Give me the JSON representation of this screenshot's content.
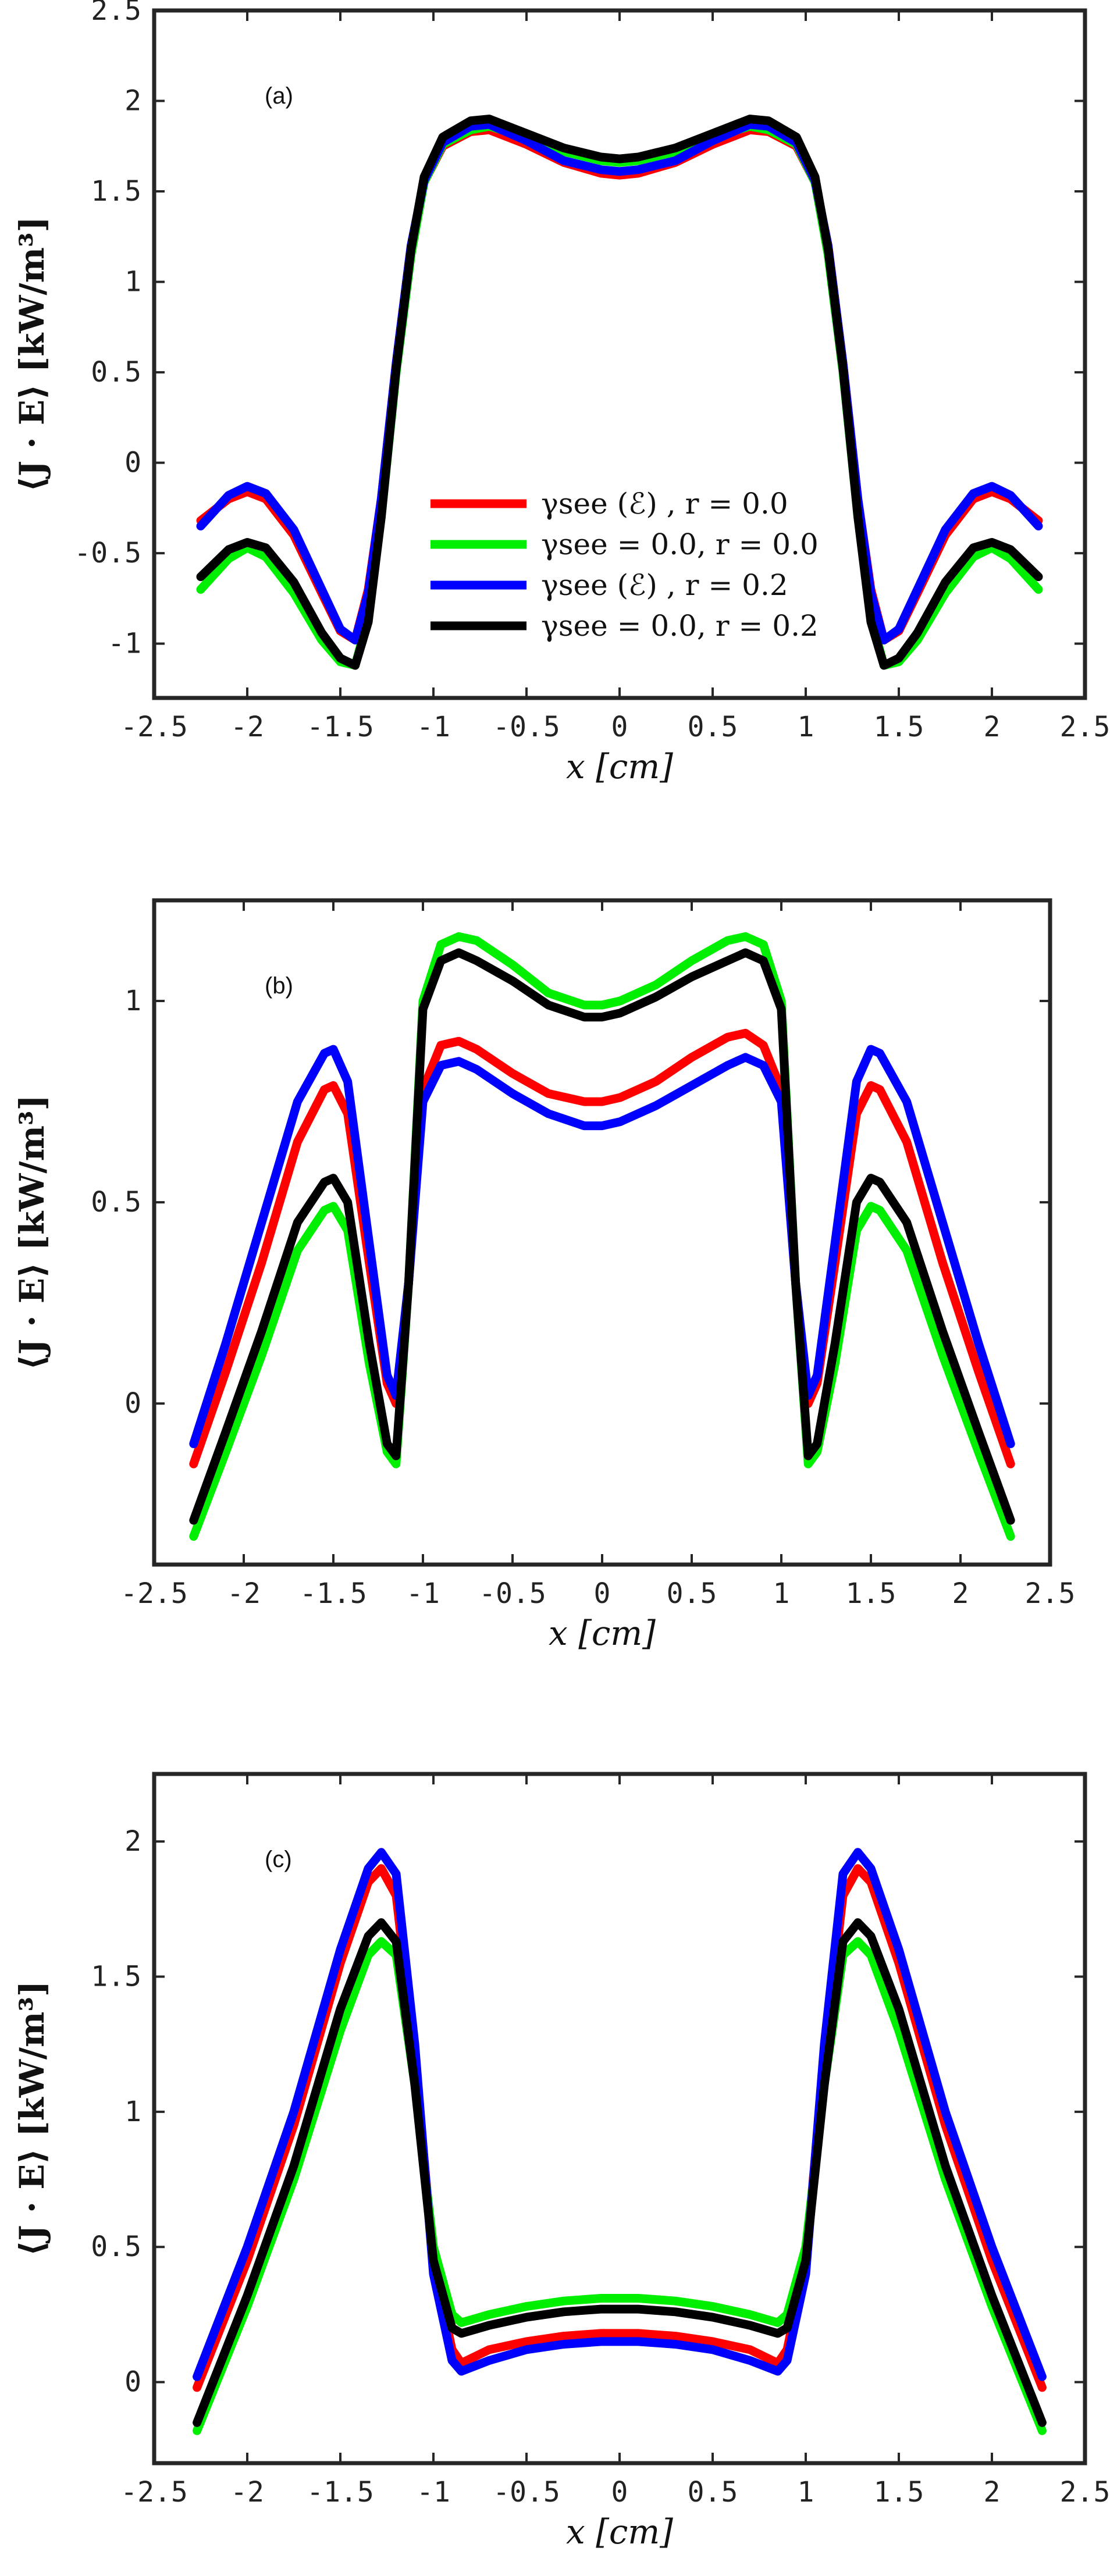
{
  "chart_data": [
    {
      "type": "line",
      "panel_label": "(a)",
      "xlabel": "x [cm]",
      "ylabel": "⟨J · E⟩ [kW/m³]",
      "xlim": [
        -2.5,
        2.5
      ],
      "ylim": [
        -1.3,
        2.5
      ],
      "xticks": [
        -2.5,
        -2,
        -1.5,
        -1,
        -0.5,
        0,
        0.5,
        1,
        1.5,
        2,
        2.5
      ],
      "xtick_labels": [
        "-2.5",
        "-2",
        "-1.5",
        "-1",
        "-0.5",
        "0",
        "0.5",
        "1",
        "1.5",
        "2",
        "2.5"
      ],
      "yticks": [
        -1,
        -0.5,
        0,
        0.5,
        1,
        1.5,
        2,
        2.5
      ],
      "ytick_labels": [
        "-1",
        "-0.5",
        "0",
        "0.5",
        "1",
        "1.5",
        "2",
        "2.5"
      ],
      "legend": {
        "placement": "lower-center",
        "show": true
      },
      "series": [
        {
          "name": "γsee (ℰ) , r = 0.0",
          "color": "#ff0000",
          "x": [
            -2.25,
            -2.1,
            -2.0,
            -1.9,
            -1.75,
            -1.6,
            -1.5,
            -1.42,
            -1.35,
            -1.28,
            -1.2,
            -1.12,
            -1.05,
            -0.95,
            -0.8,
            -0.7,
            -0.5,
            -0.3,
            -0.1,
            0,
            0.1,
            0.3,
            0.5,
            0.7,
            0.8,
            0.95,
            1.05,
            1.12,
            1.2,
            1.28,
            1.35,
            1.42,
            1.5,
            1.6,
            1.75,
            1.9,
            2.0,
            2.1,
            2.25
          ],
          "y": [
            -0.32,
            -0.2,
            -0.16,
            -0.2,
            -0.4,
            -0.72,
            -0.93,
            -0.98,
            -0.7,
            -0.2,
            0.55,
            1.2,
            1.55,
            1.75,
            1.83,
            1.84,
            1.76,
            1.66,
            1.6,
            1.59,
            1.6,
            1.66,
            1.76,
            1.84,
            1.83,
            1.75,
            1.55,
            1.2,
            0.55,
            -0.2,
            -0.7,
            -0.98,
            -0.93,
            -0.72,
            -0.4,
            -0.2,
            -0.16,
            -0.2,
            -0.32
          ]
        },
        {
          "name": "γsee = 0.0, r = 0.0",
          "color": "#00ee00",
          "x": [
            -2.25,
            -2.1,
            -2.0,
            -1.9,
            -1.75,
            -1.6,
            -1.5,
            -1.42,
            -1.35,
            -1.28,
            -1.2,
            -1.12,
            -1.05,
            -0.95,
            -0.8,
            -0.7,
            -0.5,
            -0.3,
            -0.1,
            0,
            0.1,
            0.3,
            0.5,
            0.7,
            0.8,
            0.95,
            1.05,
            1.12,
            1.2,
            1.28,
            1.35,
            1.42,
            1.5,
            1.6,
            1.75,
            1.9,
            2.0,
            2.1,
            2.25
          ],
          "y": [
            -0.7,
            -0.53,
            -0.47,
            -0.52,
            -0.72,
            -0.98,
            -1.1,
            -1.12,
            -0.85,
            -0.3,
            0.5,
            1.15,
            1.55,
            1.76,
            1.84,
            1.86,
            1.8,
            1.72,
            1.67,
            1.66,
            1.67,
            1.72,
            1.8,
            1.86,
            1.84,
            1.76,
            1.55,
            1.15,
            0.5,
            -0.3,
            -0.85,
            -1.12,
            -1.1,
            -0.98,
            -0.72,
            -0.52,
            -0.47,
            -0.53,
            -0.7
          ]
        },
        {
          "name": "γsee (ℰ) , r = 0.2",
          "color": "#0000ff",
          "x": [
            -2.25,
            -2.1,
            -2.0,
            -1.9,
            -1.75,
            -1.6,
            -1.5,
            -1.42,
            -1.35,
            -1.28,
            -1.2,
            -1.12,
            -1.05,
            -0.95,
            -0.8,
            -0.7,
            -0.5,
            -0.3,
            -0.1,
            0,
            0.1,
            0.3,
            0.5,
            0.7,
            0.8,
            0.95,
            1.05,
            1.12,
            1.2,
            1.28,
            1.35,
            1.42,
            1.5,
            1.6,
            1.75,
            1.9,
            2.0,
            2.1,
            2.25
          ],
          "y": [
            -0.35,
            -0.18,
            -0.13,
            -0.17,
            -0.37,
            -0.7,
            -0.92,
            -0.98,
            -0.72,
            -0.2,
            0.55,
            1.2,
            1.56,
            1.77,
            1.86,
            1.87,
            1.78,
            1.67,
            1.62,
            1.61,
            1.62,
            1.67,
            1.78,
            1.87,
            1.86,
            1.77,
            1.56,
            1.2,
            0.55,
            -0.2,
            -0.72,
            -0.98,
            -0.92,
            -0.7,
            -0.37,
            -0.17,
            -0.13,
            -0.18,
            -0.35
          ]
        },
        {
          "name": "γsee = 0.0, r = 0.2",
          "color": "#000000",
          "x": [
            -2.25,
            -2.1,
            -2.0,
            -1.9,
            -1.75,
            -1.6,
            -1.5,
            -1.42,
            -1.35,
            -1.28,
            -1.2,
            -1.12,
            -1.05,
            -0.95,
            -0.8,
            -0.7,
            -0.5,
            -0.3,
            -0.1,
            0,
            0.1,
            0.3,
            0.5,
            0.7,
            0.8,
            0.95,
            1.05,
            1.12,
            1.2,
            1.28,
            1.35,
            1.42,
            1.5,
            1.6,
            1.75,
            1.9,
            2.0,
            2.1,
            2.25
          ],
          "y": [
            -0.63,
            -0.48,
            -0.44,
            -0.47,
            -0.66,
            -0.94,
            -1.08,
            -1.12,
            -0.88,
            -0.3,
            0.52,
            1.18,
            1.58,
            1.8,
            1.89,
            1.9,
            1.82,
            1.74,
            1.69,
            1.68,
            1.69,
            1.74,
            1.82,
            1.9,
            1.89,
            1.8,
            1.58,
            1.18,
            0.52,
            -0.3,
            -0.88,
            -1.12,
            -1.08,
            -0.94,
            -0.66,
            -0.47,
            -0.44,
            -0.48,
            -0.63
          ]
        }
      ]
    },
    {
      "type": "line",
      "panel_label": "(b)",
      "xlabel": "x [cm]",
      "ylabel": "⟨J · E⟩ [kW/m³]",
      "xlim": [
        -2.5,
        2.5
      ],
      "ylim": [
        -0.4,
        1.25
      ],
      "xticks": [
        -2.5,
        -2,
        -1.5,
        -1,
        -0.5,
        0,
        0.5,
        1,
        1.5,
        2,
        2.5
      ],
      "xtick_labels": [
        "-2.5",
        "-2",
        "-1.5",
        "-1",
        "-0.5",
        "0",
        "0.5",
        "1",
        "1.5",
        "2",
        "2.5"
      ],
      "yticks": [
        0,
        0.5,
        1
      ],
      "ytick_labels": [
        "0",
        "0.5",
        "1"
      ],
      "legend": {
        "show": false
      },
      "series": [
        {
          "name": "γsee (ℰ) , r = 0.0",
          "color": "#ff0000",
          "x": [
            -2.28,
            -2.1,
            -1.9,
            -1.7,
            -1.55,
            -1.5,
            -1.42,
            -1.3,
            -1.2,
            -1.15,
            -1.08,
            -1.0,
            -0.9,
            -0.8,
            -0.7,
            -0.5,
            -0.3,
            -0.1,
            0,
            0.1,
            0.3,
            0.5,
            0.7,
            0.8,
            0.9,
            1.0,
            1.08,
            1.15,
            1.2,
            1.3,
            1.42,
            1.5,
            1.55,
            1.7,
            1.9,
            2.1,
            2.28
          ],
          "y": [
            -0.15,
            0.08,
            0.35,
            0.65,
            0.78,
            0.79,
            0.72,
            0.35,
            0.05,
            0.0,
            0.3,
            0.78,
            0.89,
            0.9,
            0.88,
            0.82,
            0.77,
            0.75,
            0.75,
            0.76,
            0.8,
            0.86,
            0.91,
            0.92,
            0.89,
            0.78,
            0.3,
            0.0,
            0.05,
            0.35,
            0.72,
            0.79,
            0.78,
            0.65,
            0.35,
            0.08,
            -0.15
          ]
        },
        {
          "name": "γsee = 0.0, r = 0.0",
          "color": "#00ee00",
          "x": [
            -2.28,
            -2.1,
            -1.9,
            -1.7,
            -1.55,
            -1.5,
            -1.42,
            -1.3,
            -1.2,
            -1.15,
            -1.08,
            -1.0,
            -0.9,
            -0.8,
            -0.7,
            -0.5,
            -0.3,
            -0.1,
            0,
            0.1,
            0.3,
            0.5,
            0.7,
            0.8,
            0.9,
            1.0,
            1.08,
            1.15,
            1.2,
            1.3,
            1.42,
            1.5,
            1.55,
            1.7,
            1.9,
            2.1,
            2.28
          ],
          "y": [
            -0.33,
            -0.12,
            0.12,
            0.38,
            0.48,
            0.49,
            0.43,
            0.1,
            -0.12,
            -0.15,
            0.3,
            1.0,
            1.14,
            1.16,
            1.15,
            1.09,
            1.02,
            0.99,
            0.99,
            1.0,
            1.04,
            1.1,
            1.15,
            1.16,
            1.14,
            1.0,
            0.3,
            -0.15,
            -0.12,
            0.1,
            0.43,
            0.49,
            0.48,
            0.38,
            0.12,
            -0.12,
            -0.33
          ]
        },
        {
          "name": "γsee (ℰ) , r = 0.2",
          "color": "#0000ff",
          "x": [
            -2.28,
            -2.1,
            -1.9,
            -1.7,
            -1.55,
            -1.5,
            -1.42,
            -1.3,
            -1.2,
            -1.15,
            -1.08,
            -1.0,
            -0.9,
            -0.8,
            -0.7,
            -0.5,
            -0.3,
            -0.1,
            0,
            0.1,
            0.3,
            0.5,
            0.7,
            0.8,
            0.9,
            1.0,
            1.08,
            1.15,
            1.2,
            1.3,
            1.42,
            1.5,
            1.55,
            1.7,
            1.9,
            2.1,
            2.28
          ],
          "y": [
            -0.1,
            0.15,
            0.45,
            0.75,
            0.87,
            0.88,
            0.8,
            0.4,
            0.07,
            0.02,
            0.3,
            0.75,
            0.84,
            0.85,
            0.83,
            0.77,
            0.72,
            0.69,
            0.69,
            0.7,
            0.74,
            0.79,
            0.84,
            0.86,
            0.84,
            0.75,
            0.3,
            0.02,
            0.07,
            0.4,
            0.8,
            0.88,
            0.87,
            0.75,
            0.45,
            0.15,
            -0.1
          ]
        },
        {
          "name": "γsee = 0.0, r = 0.2",
          "color": "#000000",
          "x": [
            -2.28,
            -2.1,
            -1.9,
            -1.7,
            -1.55,
            -1.5,
            -1.42,
            -1.3,
            -1.2,
            -1.15,
            -1.08,
            -1.0,
            -0.9,
            -0.8,
            -0.7,
            -0.5,
            -0.3,
            -0.1,
            0,
            0.1,
            0.3,
            0.5,
            0.7,
            0.8,
            0.9,
            1.0,
            1.08,
            1.15,
            1.2,
            1.3,
            1.42,
            1.5,
            1.55,
            1.7,
            1.9,
            2.1,
            2.28
          ],
          "y": [
            -0.29,
            -0.07,
            0.18,
            0.45,
            0.55,
            0.56,
            0.5,
            0.15,
            -0.1,
            -0.13,
            0.3,
            0.98,
            1.1,
            1.12,
            1.1,
            1.05,
            0.99,
            0.96,
            0.96,
            0.97,
            1.01,
            1.06,
            1.1,
            1.12,
            1.1,
            0.98,
            0.3,
            -0.13,
            -0.1,
            0.15,
            0.5,
            0.56,
            0.55,
            0.45,
            0.18,
            -0.07,
            -0.29
          ]
        }
      ]
    },
    {
      "type": "line",
      "panel_label": "(c)",
      "xlabel": "x [cm]",
      "ylabel": "⟨J · E⟩ [kW/m³]",
      "xlim": [
        -2.5,
        2.5
      ],
      "ylim": [
        -0.3,
        2.25
      ],
      "xticks": [
        -2.5,
        -2,
        -1.5,
        -1,
        -0.5,
        0,
        0.5,
        1,
        1.5,
        2,
        2.5
      ],
      "xtick_labels": [
        "-2.5",
        "-2",
        "-1.5",
        "-1",
        "-0.5",
        "0",
        "0.5",
        "1",
        "1.5",
        "2",
        "2.5"
      ],
      "yticks": [
        0,
        0.5,
        1,
        1.5,
        2
      ],
      "ytick_labels": [
        "0",
        "0.5",
        "1",
        "1.5",
        "2"
      ],
      "legend": {
        "show": false
      },
      "series": [
        {
          "name": "γsee (ℰ) , r = 0.0",
          "color": "#ff0000",
          "x": [
            -2.27,
            -2.0,
            -1.75,
            -1.5,
            -1.35,
            -1.28,
            -1.2,
            -1.1,
            -1.0,
            -0.9,
            -0.85,
            -0.7,
            -0.5,
            -0.3,
            -0.1,
            0,
            0.1,
            0.3,
            0.5,
            0.7,
            0.85,
            0.9,
            1.0,
            1.1,
            1.2,
            1.28,
            1.35,
            1.5,
            1.75,
            2.0,
            2.27
          ],
          "y": [
            -0.02,
            0.45,
            0.95,
            1.55,
            1.85,
            1.9,
            1.8,
            1.2,
            0.45,
            0.12,
            0.07,
            0.12,
            0.15,
            0.17,
            0.18,
            0.18,
            0.18,
            0.17,
            0.15,
            0.12,
            0.07,
            0.12,
            0.45,
            1.2,
            1.8,
            1.9,
            1.85,
            1.55,
            0.95,
            0.45,
            -0.02
          ]
        },
        {
          "name": "γsee = 0.0, r = 0.0",
          "color": "#00ee00",
          "x": [
            -2.27,
            -2.0,
            -1.75,
            -1.5,
            -1.35,
            -1.28,
            -1.2,
            -1.1,
            -1.0,
            -0.9,
            -0.85,
            -0.7,
            -0.5,
            -0.3,
            -0.1,
            0,
            0.1,
            0.3,
            0.5,
            0.7,
            0.85,
            0.9,
            1.0,
            1.1,
            1.2,
            1.28,
            1.35,
            1.5,
            1.75,
            2.0,
            2.27
          ],
          "y": [
            -0.18,
            0.28,
            0.75,
            1.3,
            1.58,
            1.63,
            1.58,
            1.1,
            0.5,
            0.25,
            0.22,
            0.25,
            0.28,
            0.3,
            0.31,
            0.31,
            0.31,
            0.3,
            0.28,
            0.25,
            0.22,
            0.25,
            0.5,
            1.1,
            1.58,
            1.63,
            1.58,
            1.3,
            0.75,
            0.28,
            -0.18
          ]
        },
        {
          "name": "γsee (ℰ) , r = 0.2",
          "color": "#0000ff",
          "x": [
            -2.27,
            -2.0,
            -1.75,
            -1.5,
            -1.35,
            -1.28,
            -1.2,
            -1.1,
            -1.0,
            -0.9,
            -0.85,
            -0.7,
            -0.5,
            -0.3,
            -0.1,
            0,
            0.1,
            0.3,
            0.5,
            0.7,
            0.85,
            0.9,
            1.0,
            1.1,
            1.2,
            1.28,
            1.35,
            1.5,
            1.75,
            2.0,
            2.27
          ],
          "y": [
            0.02,
            0.5,
            1.0,
            1.6,
            1.9,
            1.96,
            1.88,
            1.25,
            0.4,
            0.08,
            0.04,
            0.08,
            0.12,
            0.14,
            0.15,
            0.15,
            0.15,
            0.14,
            0.12,
            0.08,
            0.04,
            0.08,
            0.4,
            1.25,
            1.88,
            1.96,
            1.9,
            1.6,
            1.0,
            0.5,
            0.02
          ]
        },
        {
          "name": "γsee = 0.0, r = 0.2",
          "color": "#000000",
          "x": [
            -2.27,
            -2.0,
            -1.75,
            -1.5,
            -1.35,
            -1.28,
            -1.2,
            -1.1,
            -1.0,
            -0.9,
            -0.85,
            -0.7,
            -0.5,
            -0.3,
            -0.1,
            0,
            0.1,
            0.3,
            0.5,
            0.7,
            0.85,
            0.9,
            1.0,
            1.1,
            1.2,
            1.28,
            1.35,
            1.5,
            1.75,
            2.0,
            2.27
          ],
          "y": [
            -0.15,
            0.32,
            0.8,
            1.38,
            1.65,
            1.7,
            1.63,
            1.1,
            0.45,
            0.2,
            0.18,
            0.21,
            0.24,
            0.26,
            0.27,
            0.27,
            0.27,
            0.26,
            0.24,
            0.21,
            0.18,
            0.2,
            0.45,
            1.1,
            1.63,
            1.7,
            1.65,
            1.38,
            0.8,
            0.32,
            -0.15
          ]
        }
      ]
    }
  ]
}
